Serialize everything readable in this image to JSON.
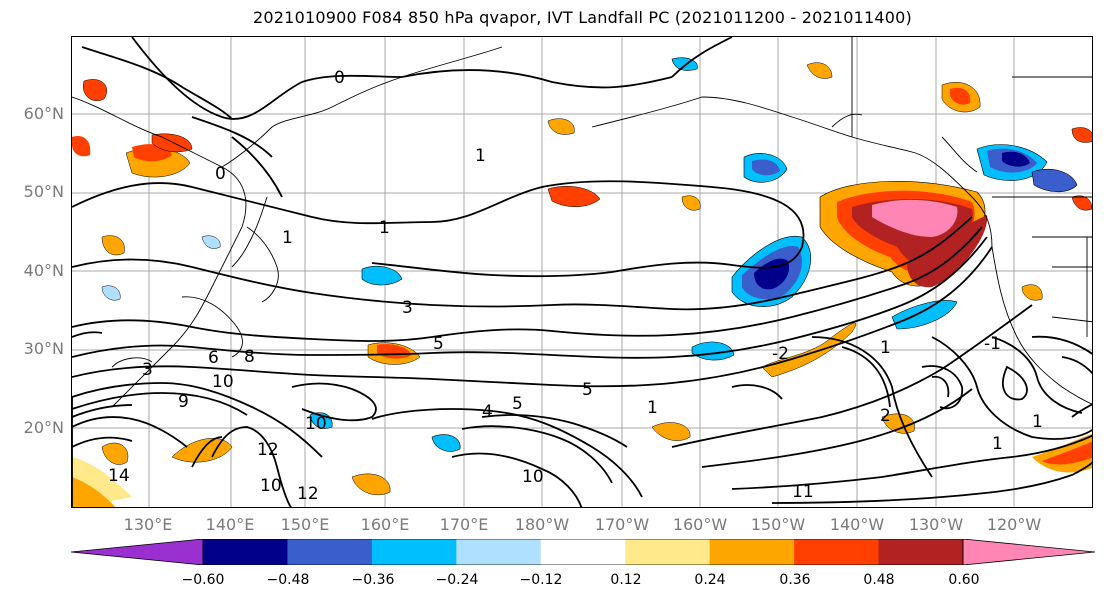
{
  "title": "2021010900 F084 850 hPa qvapor, IVT Landfall PC (2021011200 - 2021011400)",
  "lat_labels": [
    "60°N",
    "50°N",
    "40°N",
    "30°N",
    "20°N"
  ],
  "lon_labels": [
    "130°E",
    "140°E",
    "150°E",
    "160°E",
    "170°E",
    "180°W",
    "170°W",
    "160°W",
    "150°W",
    "140°W",
    "130°W",
    "120°W"
  ],
  "colorbar": {
    "colors": [
      "#9b30d0",
      "#00008b",
      "#3a5fcd",
      "#00bfff",
      "#b0e0ff",
      "#ffffff",
      "#ffe98a",
      "#ffa500",
      "#ff4000",
      "#b22222",
      "#ff86b4"
    ],
    "tick_labels": [
      "−0.60",
      "−0.48",
      "−0.36",
      "−0.24",
      "−0.12",
      "0.12",
      "0.24",
      "0.36",
      "0.48",
      "0.60"
    ]
  },
  "contour_labels": [
    "0",
    "0",
    "1",
    "1",
    "1",
    "3",
    "5",
    "5",
    "4",
    "5",
    "6",
    "8",
    "10",
    "1",
    "1",
    "1",
    "2",
    "10",
    "11",
    "10",
    "12",
    "12",
    "-1",
    "-2",
    "1",
    "9",
    "10",
    "14",
    "3"
  ]
}
